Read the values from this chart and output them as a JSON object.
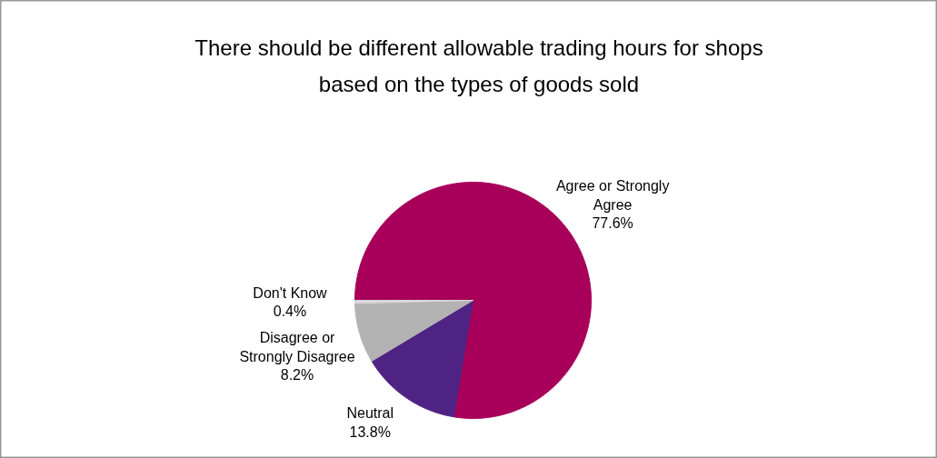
{
  "chart_data": {
    "type": "pie",
    "title": "There should be different allowable trading hours for shops based on the types of goods sold",
    "categories": [
      "Agree or Strongly Agree",
      "Neutral",
      "Disagree or Strongly Disagree",
      "Don't Know"
    ],
    "values": [
      77.6,
      13.8,
      8.2,
      0.4
    ],
    "value_labels": [
      "77.6%",
      "13.8%",
      "8.2%",
      "0.4%"
    ],
    "colors": [
      "#a8005a",
      "#4f2383",
      "#b3b3b3",
      "#d9d9d9"
    ]
  }
}
